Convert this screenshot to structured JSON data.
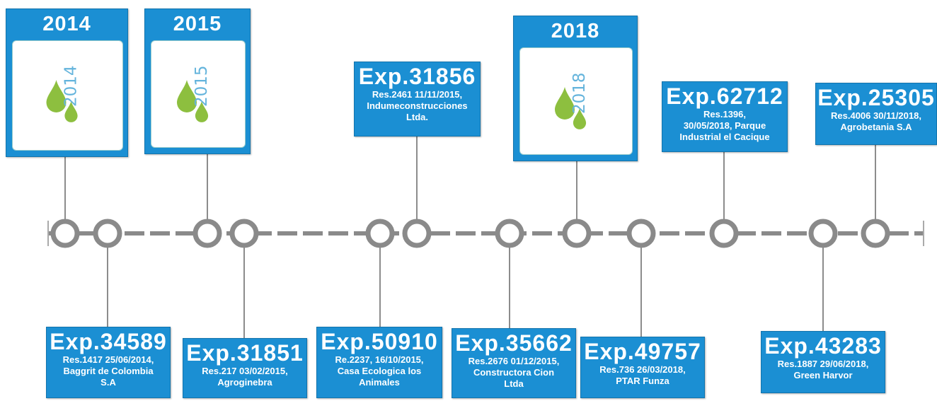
{
  "years": [
    {
      "label": "2014",
      "icon_text": "2014"
    },
    {
      "label": "2015",
      "icon_text": "2015"
    },
    {
      "label": "2018",
      "icon_text": "2018"
    }
  ],
  "events": [
    {
      "title": "Exp.34589",
      "lines": [
        "Res.1417 25/06/2014,",
        "Baggrit de Colombia",
        "S.A"
      ]
    },
    {
      "title": "Exp.31851",
      "lines": [
        "Res.217 03/02/2015,",
        "Agroginebra"
      ]
    },
    {
      "title": "Exp.50910",
      "lines": [
        "Re.2237, 16/10/2015,",
        "Casa Ecologica los",
        "Animales"
      ]
    },
    {
      "title": "Exp.31856",
      "lines": [
        "Res.2461 11/11/2015,",
        "Indumeconstrucciones",
        "Ltda."
      ]
    },
    {
      "title": "Exp.35662",
      "lines": [
        "Res.2676 01/12/2015,",
        "Constructora Cion",
        "Ltda"
      ]
    },
    {
      "title": "Exp.49757",
      "lines": [
        "Res.736 26/03/2018,",
        "PTAR Funza"
      ]
    },
    {
      "title": "Exp.62712",
      "lines": [
        "Res.1396,",
        "30/05/2018, Parque",
        "Industrial el Cacique"
      ]
    },
    {
      "title": "Exp.43283",
      "lines": [
        "Res.1887 29/06/2018,",
        "Green Harvor"
      ]
    },
    {
      "title": "Exp.25305",
      "lines": [
        "Res.4006 30/11/2018,",
        "Agrobetania S.A"
      ]
    }
  ]
}
